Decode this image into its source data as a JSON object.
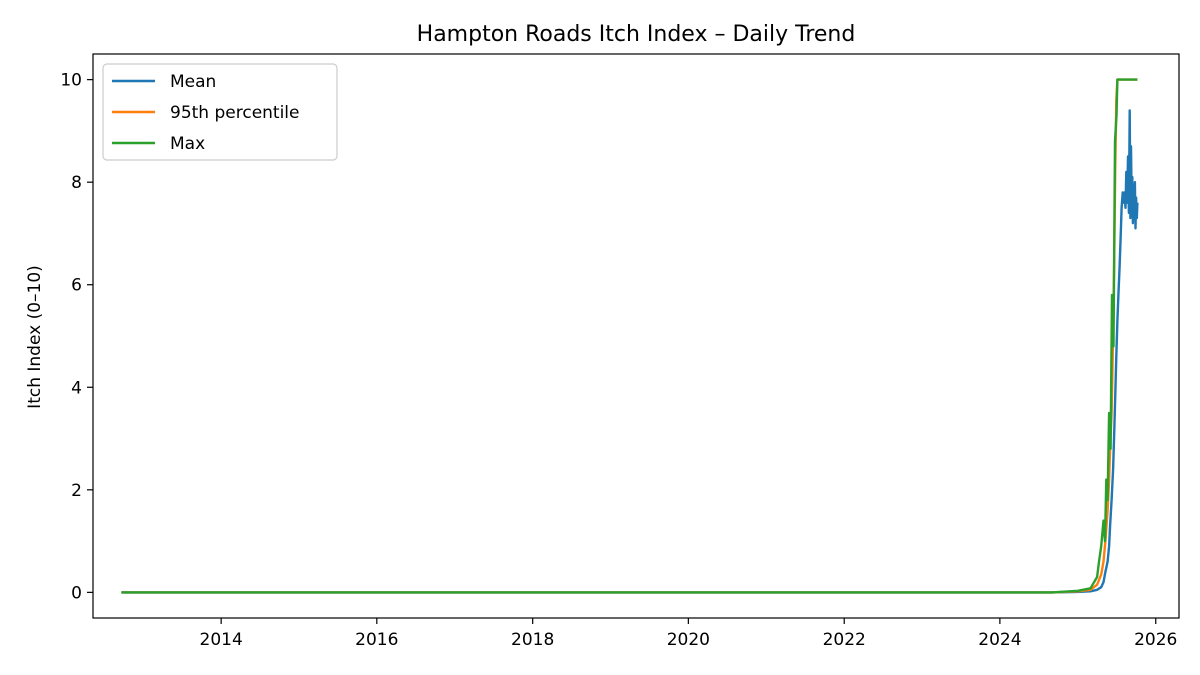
{
  "chart_data": {
    "type": "line",
    "title": "Hampton Roads Itch Index – Daily Trend",
    "xlabel": "",
    "ylabel": "Itch Index (0–10)",
    "x_ticks": [
      "2014",
      "2016",
      "2018",
      "2020",
      "2022",
      "2024",
      "2026"
    ],
    "y_ticks": [
      "0",
      "2",
      "4",
      "6",
      "8",
      "10"
    ],
    "xlim": [
      "2012-05-10",
      "2026-04-20"
    ],
    "ylim": [
      -0.5,
      10.5
    ],
    "grid": false,
    "legend_position": "top-left",
    "series": [
      {
        "name": "Mean",
        "color": "#1f77b4",
        "x": [
          "2012-09-20",
          "2024-09-01",
          "2025-01-01",
          "2025-03-01",
          "2025-04-01",
          "2025-04-20",
          "2025-05-01",
          "2025-05-10",
          "2025-05-20",
          "2025-05-27",
          "2025-06-01",
          "2025-06-08",
          "2025-06-15",
          "2025-06-20",
          "2025-06-25",
          "2025-06-30",
          "2025-07-05",
          "2025-07-10",
          "2025-07-15",
          "2025-07-20",
          "2025-07-25",
          "2025-07-30",
          "2025-08-03",
          "2025-08-08",
          "2025-08-12",
          "2025-08-16",
          "2025-08-20",
          "2025-08-24",
          "2025-08-28",
          "2025-09-01",
          "2025-09-04",
          "2025-09-07",
          "2025-09-10",
          "2025-09-13",
          "2025-09-16",
          "2025-09-19",
          "2025-09-22",
          "2025-09-25",
          "2025-09-28",
          "2025-10-01",
          "2025-10-04",
          "2025-10-07"
        ],
        "y": [
          0,
          0,
          0.01,
          0.02,
          0.05,
          0.1,
          0.2,
          0.4,
          0.6,
          0.9,
          1.3,
          1.8,
          2.4,
          3.1,
          3.8,
          4.6,
          5.3,
          5.8,
          6.3,
          6.9,
          7.5,
          7.8,
          7.6,
          7.8,
          7.5,
          8.2,
          7.6,
          8.5,
          7.4,
          9.4,
          7.3,
          8.7,
          7.5,
          8.1,
          7.2,
          7.8,
          7.4,
          8.0,
          7.1,
          7.7,
          7.3,
          7.6
        ]
      },
      {
        "name": "95th percentile",
        "color": "#ff7f0e",
        "x": [
          "2012-09-20",
          "2024-09-01",
          "2025-01-01",
          "2025-03-01",
          "2025-04-01",
          "2025-04-20",
          "2025-05-01",
          "2025-05-10",
          "2025-05-20",
          "2025-05-27",
          "2025-06-01",
          "2025-06-08",
          "2025-06-15",
          "2025-06-20",
          "2025-06-25",
          "2025-06-30",
          "2025-07-05",
          "2025-07-10",
          "2025-10-07"
        ],
        "y": [
          0,
          0,
          0.02,
          0.05,
          0.15,
          0.35,
          0.6,
          1.0,
          1.6,
          2.2,
          2.8,
          3.5,
          5.0,
          6.5,
          8.2,
          9.6,
          10,
          10,
          10
        ]
      },
      {
        "name": "Max",
        "color": "#2ca02c",
        "x": [
          "2012-09-20",
          "2024-09-01",
          "2025-01-01",
          "2025-03-01",
          "2025-04-01",
          "2025-04-10",
          "2025-04-20",
          "2025-05-01",
          "2025-05-08",
          "2025-05-14",
          "2025-05-20",
          "2025-05-27",
          "2025-06-03",
          "2025-06-10",
          "2025-06-17",
          "2025-06-24",
          "2025-07-01",
          "2025-07-05",
          "2025-10-07"
        ],
        "y": [
          0,
          0,
          0.03,
          0.08,
          0.3,
          0.6,
          0.9,
          1.4,
          1.0,
          2.2,
          1.8,
          3.5,
          2.8,
          5.8,
          4.8,
          8.8,
          9.3,
          10,
          10
        ]
      }
    ]
  }
}
